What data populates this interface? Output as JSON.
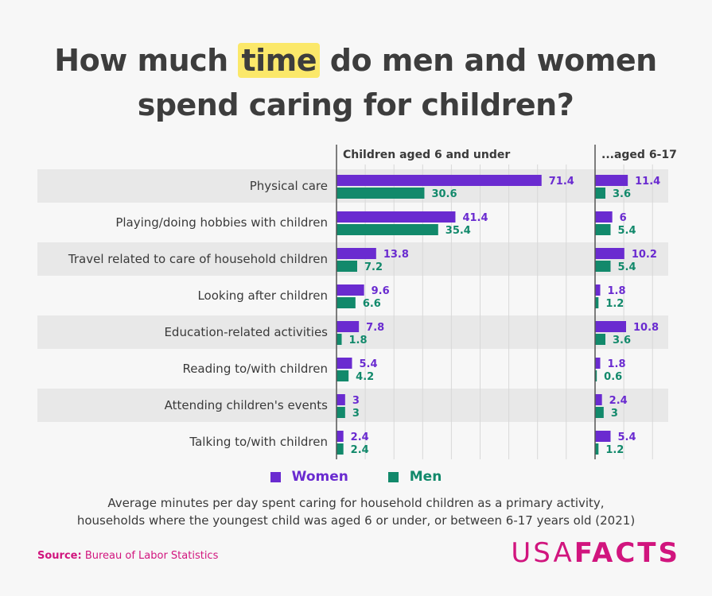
{
  "title": {
    "before": "How much ",
    "highlight": "time",
    "after": " do men and women spend caring for children?"
  },
  "colors": {
    "women": "#6a2bd0",
    "men": "#12896b",
    "accent": "#d1157e",
    "highlight": "#fbe86a"
  },
  "legend": {
    "women": "Women",
    "men": "Men"
  },
  "caption": {
    "line1": "Average minutes per day spent caring for household children as a primary activity,",
    "line2": "households where the youngest child was aged 6 or under, or between 6-17 years old (2021)"
  },
  "source": {
    "label": "Source:",
    "text": " Bureau of Labor Statistics"
  },
  "logo": {
    "part1": "USA",
    "part2": "FACTS"
  },
  "chart_data": {
    "type": "bar",
    "orientation": "horizontal",
    "categories": [
      "Physical care",
      "Playing/doing hobbies with children",
      "Travel related to care of household children",
      "Looking after children",
      "Education-related activities",
      "Reading to/with children",
      "Attending children's events",
      "Talking to/with children"
    ],
    "panels": [
      {
        "title": "Children aged 6 and under",
        "series": [
          {
            "name": "Women",
            "values": [
              71.4,
              41.4,
              13.8,
              9.6,
              7.8,
              5.4,
              3,
              2.4
            ]
          },
          {
            "name": "Men",
            "values": [
              30.6,
              35.4,
              7.2,
              6.6,
              1.8,
              4.2,
              3,
              2.4
            ]
          }
        ]
      },
      {
        "title": "...aged 6-17",
        "series": [
          {
            "name": "Women",
            "values": [
              11.4,
              6,
              10.2,
              1.8,
              10.8,
              1.8,
              2.4,
              5.4
            ]
          },
          {
            "name": "Men",
            "values": [
              3.6,
              5.4,
              5.4,
              1.2,
              3.6,
              0.6,
              3,
              1.2
            ]
          }
        ]
      }
    ],
    "grid": true,
    "legend_position": "bottom"
  }
}
